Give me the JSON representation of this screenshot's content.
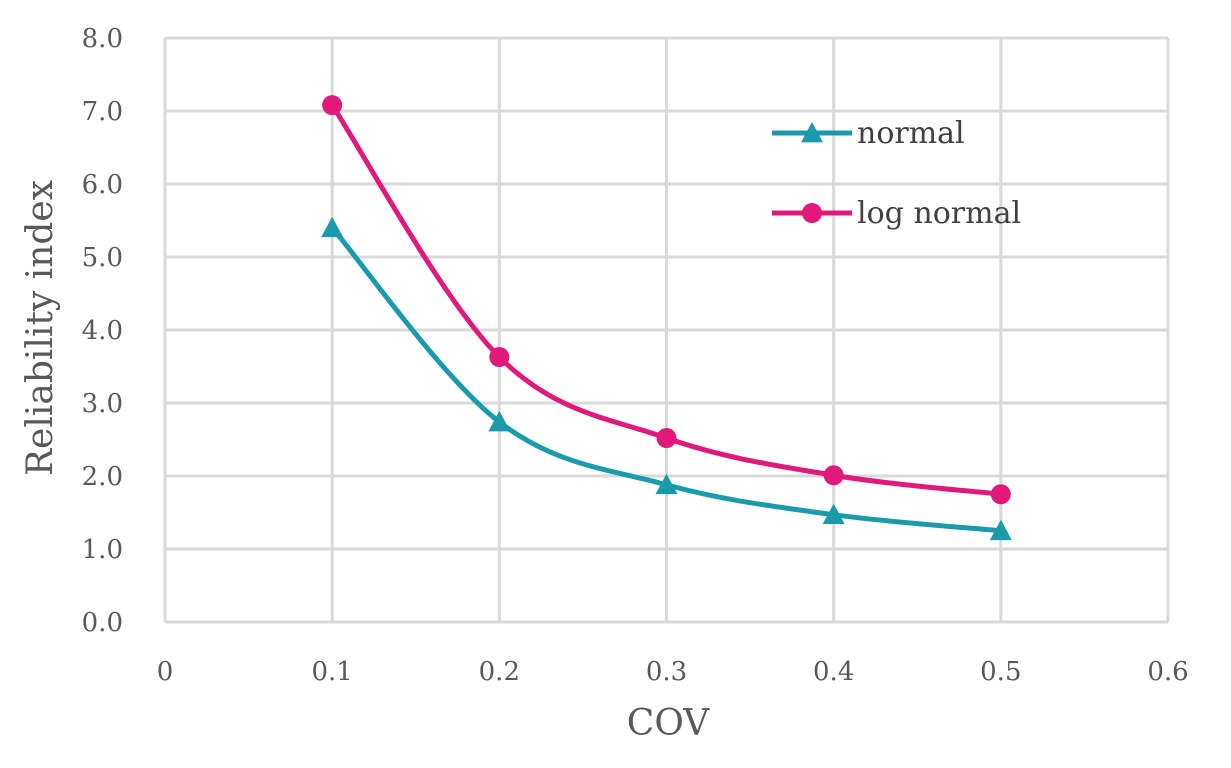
{
  "chart_data": {
    "type": "line",
    "title": "",
    "xlabel": "COV",
    "ylabel": "Reliability index",
    "xlim": [
      0,
      0.6
    ],
    "ylim": [
      0,
      8
    ],
    "x_ticks": [
      "0",
      "0.1",
      "0.2",
      "0.3",
      "0.4",
      "0.5",
      "0.6"
    ],
    "y_ticks": [
      "0.0",
      "1.0",
      "2.0",
      "3.0",
      "4.0",
      "5.0",
      "6.0",
      "7.0",
      "8.0"
    ],
    "grid": true,
    "legend_position": "top-right",
    "series": [
      {
        "name": "normal",
        "marker": "triangle",
        "color": "#1a9bab",
        "x": [
          0.1,
          0.2,
          0.3,
          0.4,
          0.5
        ],
        "y": [
          5.4,
          2.74,
          1.88,
          1.47,
          1.25
        ]
      },
      {
        "name": "log normal",
        "marker": "circle",
        "color": "#e0197a",
        "x": [
          0.1,
          0.2,
          0.3,
          0.4,
          0.5
        ],
        "y": [
          7.08,
          3.63,
          2.52,
          2.01,
          1.75
        ]
      }
    ]
  }
}
